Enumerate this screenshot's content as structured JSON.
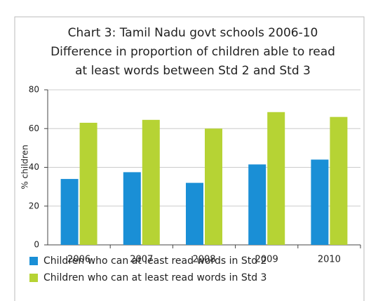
{
  "chart_data": {
    "type": "bar",
    "title": [
      "Chart 3: Tamil Nadu govt schools 2006-10",
      "Difference in proportion of children able to read",
      "at least words between Std 2 and Std 3"
    ],
    "ylabel": "% children",
    "categories": [
      "2006",
      "2007",
      "2008",
      "2009",
      "2010"
    ],
    "series": [
      {
        "name": "Children who can at least read words in Std 2",
        "color": "#1a8fd6",
        "values": [
          34,
          37.5,
          32,
          41.5,
          44
        ]
      },
      {
        "name": "Children who can at least read words in Std 3",
        "color": "#b6d334",
        "values": [
          63,
          64.5,
          60,
          68.5,
          66
        ]
      }
    ],
    "ylim": [
      0,
      80
    ],
    "yticks": [
      0,
      20,
      40,
      60,
      80
    ],
    "grid": true
  }
}
